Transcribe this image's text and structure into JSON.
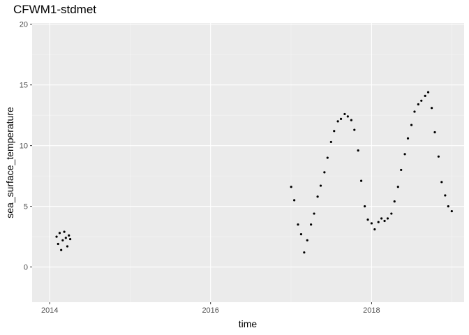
{
  "chart_data": {
    "type": "scatter",
    "title": "CFWM1-stdmet",
    "xlabel": "time",
    "ylabel": "sea_surface_temperature",
    "x_scale": "date",
    "xlim": [
      "2013-10-13",
      "2019-02-25"
    ],
    "ylim": [
      -2.9,
      20.1
    ],
    "x_ticks": [
      {
        "label": "2014",
        "value": "2014-01-01"
      },
      {
        "label": "2016",
        "value": "2016-01-01"
      },
      {
        "label": "2018",
        "value": "2018-01-01"
      }
    ],
    "y_ticks": [
      0,
      5,
      10,
      15,
      20
    ],
    "grid": true,
    "legend": "none",
    "point_color": "#000000",
    "panel_color": "#ebebeb",
    "series": [
      {
        "points": [
          [
            "2014-02-01",
            2.5
          ],
          [
            "2014-02-08",
            1.9
          ],
          [
            "2014-02-15",
            2.8
          ],
          [
            "2014-02-22",
            1.4
          ],
          [
            "2014-03-01",
            2.2
          ],
          [
            "2014-03-08",
            2.9
          ],
          [
            "2014-03-15",
            2.4
          ],
          [
            "2014-03-22",
            1.7
          ],
          [
            "2014-03-29",
            2.6
          ],
          [
            "2014-04-04",
            2.3
          ],
          [
            "2017-01-01",
            6.6
          ],
          [
            "2017-01-15",
            5.5
          ],
          [
            "2017-02-01",
            3.5
          ],
          [
            "2017-02-15",
            2.7
          ],
          [
            "2017-03-01",
            1.2
          ],
          [
            "2017-03-15",
            2.2
          ],
          [
            "2017-04-01",
            3.5
          ],
          [
            "2017-04-15",
            4.4
          ],
          [
            "2017-05-01",
            5.8
          ],
          [
            "2017-05-15",
            6.7
          ],
          [
            "2017-06-01",
            7.8
          ],
          [
            "2017-06-15",
            9.0
          ],
          [
            "2017-07-01",
            10.3
          ],
          [
            "2017-07-15",
            11.2
          ],
          [
            "2017-08-01",
            12.0
          ],
          [
            "2017-08-15",
            12.2
          ],
          [
            "2017-09-01",
            12.6
          ],
          [
            "2017-09-15",
            12.4
          ],
          [
            "2017-10-01",
            12.1
          ],
          [
            "2017-10-15",
            11.3
          ],
          [
            "2017-11-01",
            9.6
          ],
          [
            "2017-11-15",
            7.1
          ],
          [
            "2017-12-01",
            5.0
          ],
          [
            "2017-12-15",
            3.9
          ],
          [
            "2018-01-01",
            3.6
          ],
          [
            "2018-01-15",
            3.1
          ],
          [
            "2018-02-01",
            3.7
          ],
          [
            "2018-02-15",
            4.0
          ],
          [
            "2018-03-01",
            3.8
          ],
          [
            "2018-03-15",
            4.0
          ],
          [
            "2018-04-01",
            4.4
          ],
          [
            "2018-04-15",
            5.4
          ],
          [
            "2018-05-01",
            6.6
          ],
          [
            "2018-05-15",
            8.0
          ],
          [
            "2018-06-01",
            9.3
          ],
          [
            "2018-06-15",
            10.6
          ],
          [
            "2018-07-01",
            11.7
          ],
          [
            "2018-07-15",
            12.8
          ],
          [
            "2018-08-01",
            13.4
          ],
          [
            "2018-08-15",
            13.7
          ],
          [
            "2018-09-01",
            14.1
          ],
          [
            "2018-09-15",
            14.4
          ],
          [
            "2018-10-01",
            13.1
          ],
          [
            "2018-10-15",
            11.1
          ],
          [
            "2018-11-01",
            9.1
          ],
          [
            "2018-11-15",
            7.0
          ],
          [
            "2018-12-01",
            5.9
          ],
          [
            "2018-12-15",
            5.0
          ],
          [
            "2018-12-31",
            4.6
          ]
        ]
      }
    ]
  }
}
